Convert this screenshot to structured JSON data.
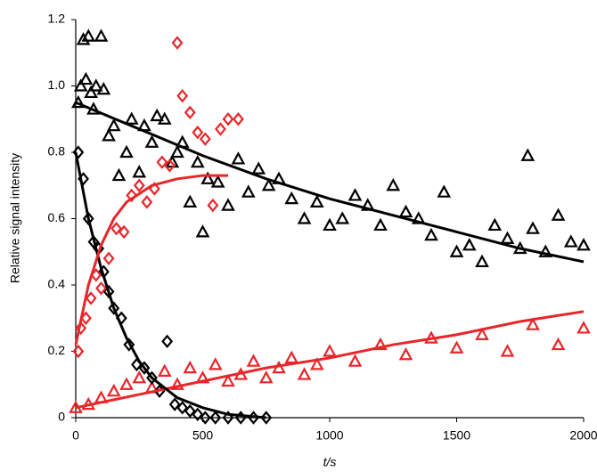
{
  "chart_data": {
    "type": "scatter",
    "xlabel": "t/s",
    "ylabel": "Relative signal intensity",
    "xlim": [
      0,
      2000
    ],
    "ylim": [
      0,
      1.2
    ],
    "xticks": [
      0,
      500,
      1000,
      1500,
      2000
    ],
    "yticks": [
      0,
      0.2,
      0.4,
      0.6,
      0.8,
      {
        "value": 1,
        "label": "1.0"
      },
      1.2
    ],
    "grid": false,
    "series": [
      {
        "marker": "triangle",
        "color": "#000000",
        "x": [
          10,
          20,
          30,
          40,
          50,
          60,
          70,
          80,
          100,
          110,
          130,
          150,
          170,
          200,
          220,
          250,
          270,
          300,
          320,
          350,
          380,
          400,
          420,
          450,
          480,
          500,
          520,
          560,
          600,
          640,
          680,
          720,
          760,
          800,
          850,
          900,
          950,
          1000,
          1050,
          1100,
          1150,
          1200,
          1250,
          1300,
          1350,
          1400,
          1450,
          1500,
          1550,
          1600,
          1650,
          1700,
          1750,
          1780,
          1800,
          1850,
          1900,
          1950,
          2000
        ],
        "values": [
          0.95,
          1.0,
          1.14,
          1.02,
          1.15,
          0.98,
          0.93,
          1.0,
          1.15,
          0.99,
          0.85,
          0.88,
          0.73,
          0.8,
          0.9,
          0.74,
          0.88,
          0.83,
          0.91,
          0.9,
          0.77,
          0.8,
          0.83,
          0.65,
          0.77,
          0.56,
          0.72,
          0.71,
          0.64,
          0.78,
          0.68,
          0.75,
          0.7,
          0.72,
          0.66,
          0.6,
          0.65,
          0.58,
          0.6,
          0.67,
          0.64,
          0.58,
          0.7,
          0.62,
          0.6,
          0.55,
          0.68,
          0.5,
          0.52,
          0.47,
          0.58,
          0.54,
          0.51,
          0.79,
          0.57,
          0.5,
          0.61,
          0.53,
          0.52
        ]
      },
      {
        "marker": "triangle",
        "color": "#e8262a",
        "x": [
          0,
          50,
          100,
          150,
          200,
          250,
          300,
          350,
          400,
          450,
          500,
          550,
          600,
          650,
          700,
          750,
          800,
          850,
          900,
          950,
          1000,
          1100,
          1200,
          1300,
          1400,
          1500,
          1600,
          1700,
          1800,
          1900,
          2000
        ],
        "values": [
          0.03,
          0.04,
          0.06,
          0.08,
          0.1,
          0.12,
          0.09,
          0.14,
          0.1,
          0.15,
          0.12,
          0.16,
          0.11,
          0.13,
          0.17,
          0.12,
          0.15,
          0.18,
          0.13,
          0.16,
          0.2,
          0.17,
          0.22,
          0.19,
          0.24,
          0.21,
          0.25,
          0.2,
          0.28,
          0.22,
          0.27
        ]
      },
      {
        "marker": "diamond",
        "color": "#000000",
        "x": [
          10,
          30,
          50,
          70,
          90,
          110,
          130,
          150,
          180,
          210,
          240,
          270,
          300,
          330,
          360,
          390,
          420,
          450,
          480,
          510,
          550,
          600,
          650,
          700,
          750
        ],
        "values": [
          0.8,
          0.72,
          0.6,
          0.53,
          0.51,
          0.44,
          0.38,
          0.33,
          0.3,
          0.22,
          0.16,
          0.15,
          0.12,
          0.08,
          0.23,
          0.04,
          0.03,
          0.02,
          0.01,
          0,
          0,
          0,
          0,
          0,
          0
        ]
      },
      {
        "marker": "diamond",
        "color": "#e8262a",
        "x": [
          10,
          20,
          40,
          60,
          80,
          100,
          130,
          160,
          190,
          220,
          250,
          280,
          310,
          340,
          370,
          400,
          420,
          450,
          480,
          510,
          540,
          570,
          600,
          640
        ],
        "values": [
          0.2,
          0.27,
          0.3,
          0.36,
          0.43,
          0.39,
          0.48,
          0.57,
          0.56,
          0.67,
          0.7,
          0.65,
          0.69,
          0.77,
          0.76,
          1.13,
          0.97,
          0.92,
          0.86,
          0.84,
          0.64,
          0.87,
          0.9,
          0.9
        ]
      },
      {
        "marker": "line",
        "color": "#000000",
        "x": [
          0,
          250,
          500,
          750,
          1000,
          1250,
          1500,
          1750,
          2000
        ],
        "values": [
          0.95,
          0.87,
          0.79,
          0.72,
          0.66,
          0.61,
          0.56,
          0.51,
          0.47
        ]
      },
      {
        "marker": "line",
        "color": "#e8262a",
        "x": [
          0,
          250,
          500,
          750,
          1000,
          1250,
          1500,
          1750,
          2000
        ],
        "values": [
          0.03,
          0.07,
          0.11,
          0.15,
          0.18,
          0.22,
          0.25,
          0.29,
          0.32
        ]
      },
      {
        "marker": "line",
        "color": "#000000",
        "x": [
          0,
          50,
          100,
          150,
          200,
          250,
          300,
          400,
          500,
          600,
          750
        ],
        "values": [
          0.8,
          0.6,
          0.45,
          0.33,
          0.24,
          0.17,
          0.12,
          0.06,
          0.03,
          0.01,
          0
        ]
      },
      {
        "marker": "line",
        "color": "#e8262a",
        "x": [
          0,
          50,
          100,
          150,
          200,
          300,
          400,
          500,
          600
        ],
        "values": [
          0.22,
          0.4,
          0.52,
          0.6,
          0.65,
          0.7,
          0.72,
          0.73,
          0.73
        ]
      }
    ]
  }
}
